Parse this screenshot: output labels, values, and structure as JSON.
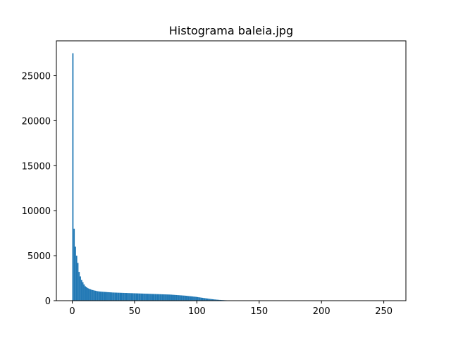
{
  "chart_data": {
    "type": "bar",
    "title": "Histograma baleia.jpg",
    "xlabel": "",
    "ylabel": "",
    "xlim": [
      -12.75,
      267.75
    ],
    "ylim": [
      0,
      28875
    ],
    "x_ticks": [
      0,
      50,
      100,
      150,
      200,
      250
    ],
    "y_ticks": [
      0,
      5000,
      10000,
      15000,
      20000,
      25000
    ],
    "grid": false,
    "bar_color": "#1f77b4",
    "bin_width": 1,
    "x": [
      0,
      1,
      2,
      3,
      4,
      5,
      6,
      7,
      8,
      9,
      10,
      11,
      12,
      13,
      14,
      15,
      16,
      17,
      18,
      19,
      20,
      21,
      22,
      23,
      24,
      25,
      26,
      27,
      28,
      29,
      30,
      31,
      32,
      33,
      34,
      35,
      36,
      37,
      38,
      39,
      40,
      41,
      42,
      43,
      44,
      45,
      46,
      47,
      48,
      49,
      50,
      51,
      52,
      53,
      54,
      55,
      56,
      57,
      58,
      59,
      60,
      61,
      62,
      63,
      64,
      65,
      66,
      67,
      68,
      69,
      70,
      71,
      72,
      73,
      74,
      75,
      76,
      77,
      78,
      79,
      80,
      81,
      82,
      83,
      84,
      85,
      86,
      87,
      88,
      89,
      90,
      91,
      92,
      93,
      94,
      95,
      96,
      97,
      98,
      99,
      100,
      101,
      102,
      103,
      104,
      105,
      106,
      107,
      108,
      109,
      110,
      111,
      112,
      113,
      114,
      115,
      116,
      117,
      118,
      119,
      120,
      121,
      122,
      123,
      124,
      125,
      126,
      127,
      128,
      129,
      130,
      131,
      132,
      133,
      134,
      135,
      136,
      137,
      138,
      139,
      140,
      141,
      142,
      143,
      144,
      145,
      146,
      147,
      148,
      149,
      150,
      151,
      152,
      153,
      154,
      155,
      156,
      157,
      158,
      159,
      160
    ],
    "values": [
      27500,
      8000,
      6000,
      5000,
      4200,
      3200,
      2700,
      2300,
      2050,
      1800,
      1600,
      1500,
      1400,
      1330,
      1270,
      1220,
      1180,
      1140,
      1110,
      1080,
      1050,
      1030,
      1010,
      1000,
      990,
      980,
      970,
      960,
      950,
      940,
      930,
      920,
      910,
      905,
      900,
      895,
      890,
      885,
      880,
      875,
      870,
      865,
      860,
      855,
      850,
      845,
      840,
      835,
      830,
      825,
      820,
      815,
      810,
      805,
      800,
      795,
      790,
      785,
      780,
      775,
      770,
      765,
      760,
      755,
      750,
      745,
      740,
      735,
      730,
      725,
      720,
      715,
      710,
      705,
      700,
      695,
      690,
      685,
      680,
      670,
      660,
      650,
      640,
      630,
      620,
      610,
      600,
      590,
      580,
      570,
      560,
      545,
      530,
      515,
      500,
      485,
      470,
      455,
      440,
      425,
      400,
      380,
      360,
      340,
      320,
      300,
      280,
      260,
      240,
      220,
      200,
      182,
      165,
      150,
      135,
      120,
      108,
      96,
      85,
      75,
      66,
      58,
      50,
      44,
      38,
      33,
      28,
      24,
      20,
      17,
      14,
      12,
      10,
      8,
      7,
      6,
      5,
      5,
      4,
      4,
      3,
      3,
      3,
      2,
      2,
      2,
      2,
      2,
      2,
      1,
      1,
      1,
      1,
      1,
      1,
      1,
      1,
      1,
      1,
      1,
      1
    ]
  }
}
